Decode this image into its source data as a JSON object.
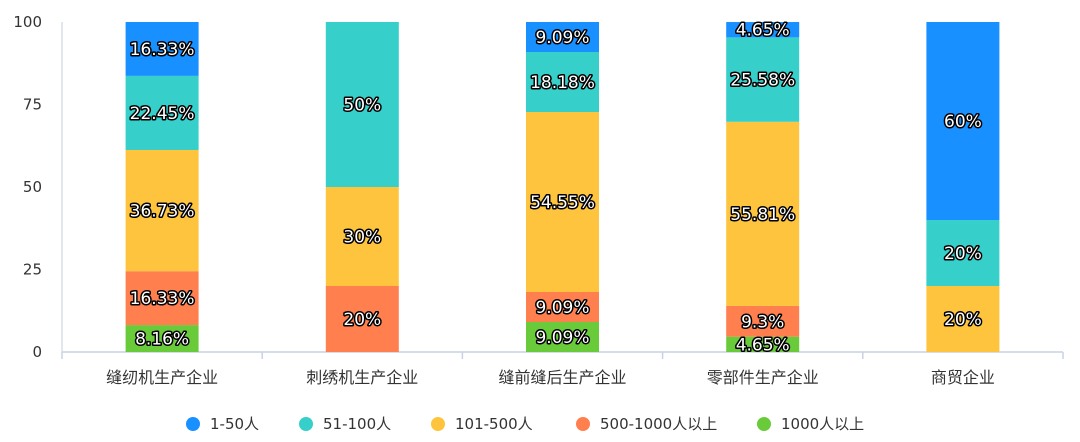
{
  "chart_data": {
    "type": "bar",
    "stacked": true,
    "title": "",
    "xlabel": "",
    "ylabel": "",
    "ylim": [
      0,
      100
    ],
    "yticks": [
      0,
      25,
      50,
      75,
      100
    ],
    "categories": [
      "缝纫机生产企业",
      "刺绣机生产企业",
      "缝前缝后生产企业",
      "零部件生产企业",
      "商贸企业"
    ],
    "series": [
      {
        "name": "1000人以上",
        "color": "#6ACB3A",
        "values": [
          8.16,
          0,
          9.09,
          4.65,
          0
        ],
        "labels": [
          "8.16%",
          "",
          "9.09%",
          "4.65%",
          ""
        ]
      },
      {
        "name": "500-1000人以上",
        "color": "#FF7F4E",
        "values": [
          16.33,
          20,
          9.09,
          9.3,
          0
        ],
        "labels": [
          "16.33%",
          "20%",
          "9.09%",
          "9.3%",
          ""
        ]
      },
      {
        "name": "101-500人",
        "color": "#FFC43D",
        "values": [
          36.73,
          30,
          54.55,
          55.81,
          20
        ],
        "labels": [
          "36.73%",
          "30%",
          "54.55%",
          "55.81%",
          "20%"
        ]
      },
      {
        "name": "51-100人",
        "color": "#36CFC9",
        "values": [
          22.45,
          50,
          18.18,
          25.58,
          20
        ],
        "labels": [
          "22.45%",
          "50%",
          "18.18%",
          "25.58%",
          "20%"
        ]
      },
      {
        "name": "1-50人",
        "color": "#1890FF",
        "values": [
          16.33,
          0,
          9.09,
          4.65,
          60
        ],
        "labels": [
          "16.33%",
          "",
          "9.09%",
          "4.65%",
          "60%"
        ]
      }
    ],
    "legend": {
      "placement": "bottom",
      "order": [
        "1-50人",
        "51-100人",
        "101-500人",
        "500-1000人以上",
        "1000人以上"
      ]
    }
  }
}
